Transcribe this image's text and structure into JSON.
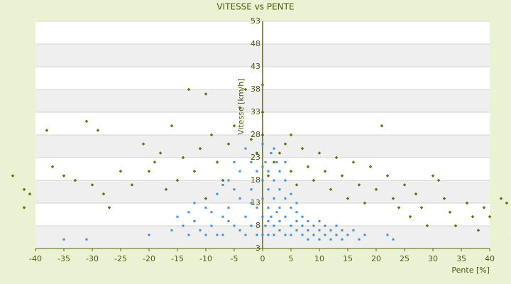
{
  "chart_data": {
    "type": "scatter",
    "title": "VITESSE vs PENTE",
    "x_label": "Pente [%]",
    "y_label": "Vitesse [km/h]",
    "xlim": [
      -40,
      40
    ],
    "xticks": [
      -40,
      -35,
      -30,
      -25,
      -20,
      -15,
      -10,
      -5,
      0,
      5,
      10,
      15,
      20,
      25,
      30,
      35,
      40
    ],
    "ylim": [
      3,
      53
    ],
    "yticks": [
      3,
      8,
      13,
      18,
      23,
      28,
      33,
      38,
      43,
      48,
      53
    ],
    "grid": true,
    "series": [
      {
        "color": "#3d8fdc",
        "marker": "square",
        "x": [
          -35,
          -31,
          -20,
          -16,
          -15,
          -14,
          -13,
          -12,
          -11,
          -10,
          -9,
          -8,
          -7,
          -7,
          -6,
          -6,
          -5,
          -5,
          -4,
          -4,
          -3,
          -3,
          -3,
          -2,
          -2,
          -2,
          -1,
          -1,
          -1,
          -1,
          0,
          0,
          0,
          0,
          0,
          0.5,
          0.5,
          1,
          1,
          1,
          1,
          1.5,
          1.5,
          2,
          2,
          2,
          2,
          2.5,
          2.5,
          3,
          3,
          3,
          3,
          4,
          4,
          4,
          4,
          5,
          5,
          5,
          5,
          6,
          6,
          6,
          7,
          7,
          7,
          8,
          8,
          8,
          9,
          9,
          10,
          10,
          10,
          11,
          11,
          12,
          12,
          13,
          13,
          14,
          14,
          15,
          16,
          17,
          18,
          22,
          23,
          -8,
          -9,
          -5,
          -4,
          3,
          2,
          1,
          0,
          -2,
          6,
          4,
          -6,
          -10,
          -12,
          -13,
          -7
        ],
        "values": [
          5,
          5,
          6,
          7,
          10,
          8,
          6,
          9,
          7,
          12,
          8,
          15,
          10,
          6,
          18,
          12,
          22,
          8,
          14,
          20,
          25,
          10,
          6,
          16,
          22,
          8,
          20,
          12,
          24,
          6,
          18,
          10,
          26,
          14,
          6,
          22,
          8,
          20,
          16,
          12,
          6,
          24,
          10,
          18,
          14,
          8,
          6,
          22,
          11,
          16,
          12,
          7,
          9,
          14,
          10,
          6,
          18,
          12,
          8,
          6,
          15,
          11,
          7,
          9,
          10,
          6,
          8,
          9,
          7,
          5,
          8,
          6,
          9,
          7,
          5,
          8,
          6,
          7,
          5,
          8,
          6,
          7,
          5,
          6,
          7,
          5,
          6,
          6,
          5,
          6,
          11,
          16,
          7,
          20,
          25,
          9,
          21,
          13,
          13,
          22,
          9,
          6,
          13,
          11,
          17
        ]
      },
      {
        "color": "#6b7500",
        "marker": "diamond",
        "x": [
          -44,
          -42,
          -41,
          -42,
          -38,
          -37,
          -35,
          -33,
          -31,
          -30,
          -29,
          -28,
          -27,
          -25,
          -23,
          -21,
          -20,
          -19,
          -18,
          -17,
          -16,
          -15,
          -14,
          -13,
          -12,
          -11,
          -10,
          -10,
          -9,
          -8,
          -7,
          -6,
          -5,
          -4,
          -3,
          -2,
          -1,
          0,
          0,
          0,
          1,
          2,
          3,
          4,
          5,
          5,
          6,
          7,
          8,
          9,
          10,
          11,
          12,
          13,
          14,
          15,
          16,
          17,
          18,
          19,
          20,
          21,
          22,
          23,
          24,
          25,
          26,
          27,
          28,
          29,
          30,
          31,
          32,
          33,
          34,
          36,
          37,
          38,
          39,
          40,
          42,
          43,
          44
        ],
        "values": [
          19,
          16,
          15,
          12,
          29,
          21,
          19,
          18,
          31,
          17,
          29,
          15,
          12,
          20,
          17,
          26,
          20,
          22,
          24,
          16,
          30,
          18,
          23,
          38,
          20,
          25,
          37,
          14,
          28,
          22,
          18,
          26,
          30,
          34,
          38,
          27,
          24,
          39,
          33,
          28,
          19,
          22,
          24,
          26,
          28,
          20,
          17,
          25,
          21,
          18,
          24,
          20,
          16,
          23,
          19,
          14,
          22,
          17,
          13,
          21,
          16,
          30,
          19,
          14,
          12,
          17,
          10,
          15,
          12,
          8,
          19,
          18,
          14,
          11,
          8,
          13,
          10,
          7,
          12,
          10,
          14,
          13,
          5
        ]
      }
    ]
  }
}
